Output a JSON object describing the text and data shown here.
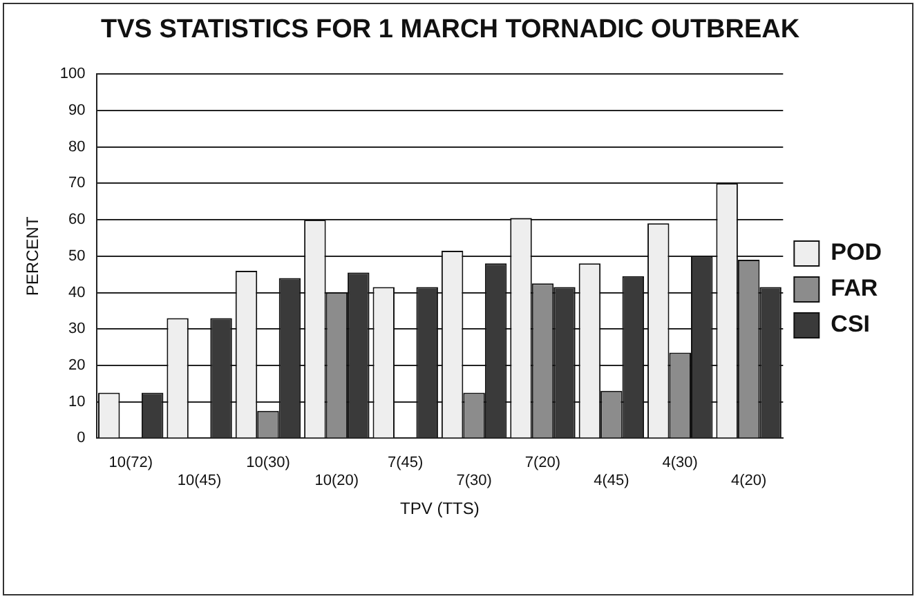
{
  "chart_data": {
    "type": "bar",
    "title": "TVS STATISTICS FOR 1 MARCH TORNADIC OUTBREAK",
    "xlabel": "TPV (TTS)",
    "ylabel": "PERCENT",
    "categories": [
      "10(72)",
      "10(45)",
      "10(30)",
      "10(20)",
      "7(45)",
      "7(30)",
      "7(20)",
      "4(45)",
      "4(30)",
      "4(20)"
    ],
    "series": [
      {
        "name": "POD",
        "color": "#eeeeee",
        "values": [
          12.5,
          33,
          46,
          60,
          41.5,
          51.5,
          60.5,
          48,
          59,
          70
        ]
      },
      {
        "name": "FAR",
        "color": "#8c8c8c",
        "values": [
          0,
          0,
          7.5,
          40,
          0,
          12.5,
          42.5,
          13,
          23.5,
          49
        ]
      },
      {
        "name": "CSI",
        "color": "#3a3a3a",
        "values": [
          12.5,
          33,
          44,
          45.5,
          41.5,
          48,
          41.5,
          44.5,
          50,
          41.5
        ]
      }
    ],
    "ylim": [
      0,
      100
    ],
    "yticks": [
      0,
      10,
      20,
      30,
      40,
      50,
      60,
      70,
      80,
      90,
      100
    ],
    "grid": "y",
    "legend": "right"
  }
}
